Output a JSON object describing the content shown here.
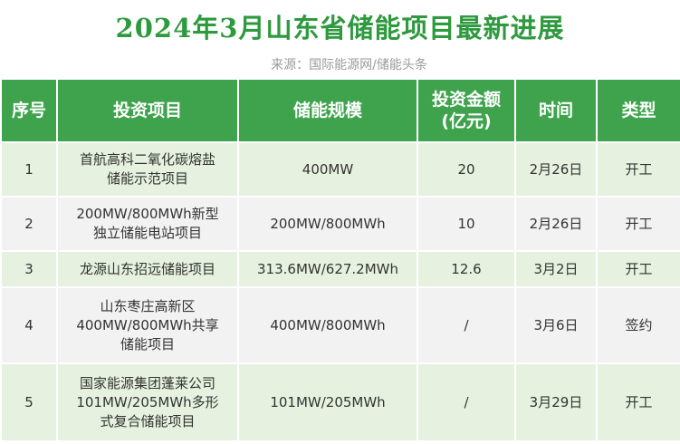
{
  "header": {
    "title": "2024年3月山东省储能项目最新进展",
    "source": "来源：国际能源网/储能头条"
  },
  "table": {
    "columns": [
      "序号",
      "投资项目",
      "储能规模",
      "投资金额\n(亿元)",
      "时间",
      "类型"
    ],
    "rows": [
      [
        "1",
        "首航高科二氧化碳熔盐\n储能示范项目",
        "400MW",
        "20",
        "2月26日",
        "开工"
      ],
      [
        "2",
        "200MW/800MWh新型\n独立储能电站项目",
        "200MW/800MWh",
        "10",
        "2月26日",
        "开工"
      ],
      [
        "3",
        "龙源山东招远储能项目",
        "313.6MW/627.2MWh",
        "12.6",
        "3月2日",
        "开工"
      ],
      [
        "4",
        "山东枣庄高新区\n400MW/800MWh共享\n储能项目",
        "400MW/800MWh",
        "/",
        "3月6日",
        "签约"
      ],
      [
        "5",
        "国家能源集团蓬莱公司\n101MW/205MWh多形\n式复合储能项目",
        "101MW/205MWh",
        "/",
        "3月29日",
        "开工"
      ]
    ]
  }
}
